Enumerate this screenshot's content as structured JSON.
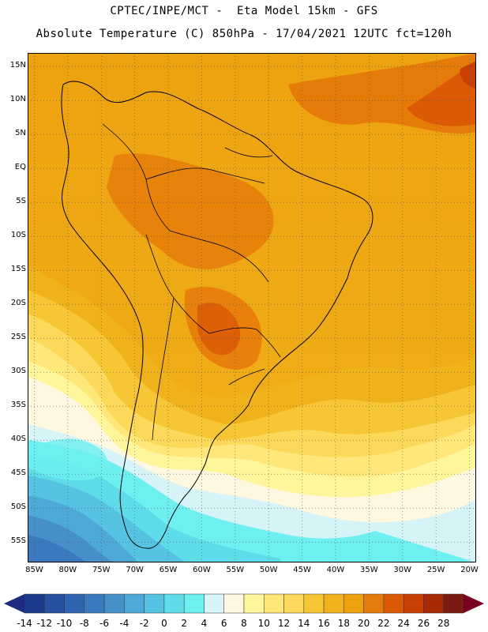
{
  "header": {
    "line1": "CPTEC/INPE/MCT -  Eta Model 15km - GFS",
    "line2": "Absolute Temperature (C) 850hPa - 17/04/2021 12UTC fct=120h"
  },
  "map": {
    "lon_range": [
      -86,
      -19
    ],
    "lat_range": [
      -58,
      17
    ],
    "lat_ticks": [
      {
        "value": 15,
        "label": "15N"
      },
      {
        "value": 10,
        "label": "10N"
      },
      {
        "value": 5,
        "label": "5N"
      },
      {
        "value": 0,
        "label": "EQ"
      },
      {
        "value": -5,
        "label": "5S"
      },
      {
        "value": -10,
        "label": "10S"
      },
      {
        "value": -15,
        "label": "15S"
      },
      {
        "value": -20,
        "label": "20S"
      },
      {
        "value": -25,
        "label": "25S"
      },
      {
        "value": -30,
        "label": "30S"
      },
      {
        "value": -35,
        "label": "35S"
      },
      {
        "value": -40,
        "label": "40S"
      },
      {
        "value": -45,
        "label": "45S"
      },
      {
        "value": -50,
        "label": "50S"
      },
      {
        "value": -55,
        "label": "55S"
      }
    ],
    "lon_ticks": [
      {
        "value": -85,
        "label": "85W"
      },
      {
        "value": -80,
        "label": "80W"
      },
      {
        "value": -75,
        "label": "75W"
      },
      {
        "value": -70,
        "label": "70W"
      },
      {
        "value": -65,
        "label": "65W"
      },
      {
        "value": -60,
        "label": "60W"
      },
      {
        "value": -55,
        "label": "55W"
      },
      {
        "value": -50,
        "label": "50W"
      },
      {
        "value": -45,
        "label": "45W"
      },
      {
        "value": -40,
        "label": "40W"
      },
      {
        "value": -35,
        "label": "35W"
      },
      {
        "value": -30,
        "label": "30W"
      },
      {
        "value": -25,
        "label": "25W"
      },
      {
        "value": -20,
        "label": "20W"
      }
    ],
    "gridlines": "dotted"
  },
  "colorbar": {
    "labels": [
      "-14",
      "-12",
      "-10",
      "-8",
      "-6",
      "-4",
      "-2",
      "0",
      "2",
      "4",
      "6",
      "8",
      "10",
      "12",
      "14",
      "16",
      "18",
      "20",
      "22",
      "24",
      "26",
      "28"
    ],
    "colors": [
      "#1a3a8c",
      "#27509f",
      "#2f64b0",
      "#3b79bf",
      "#4590c9",
      "#4fa9d6",
      "#56c3e2",
      "#5fdcea",
      "#6ef0f0",
      "#d6f4f8",
      "#fff8e0",
      "#fff59a",
      "#ffe77a",
      "#fcd95a",
      "#f6c635",
      "#f0b21a",
      "#eda20f",
      "#e57c0a",
      "#dc5a06",
      "#c94004",
      "#a82a05",
      "#7a1a10"
    ],
    "under_color": "#1e2a80",
    "over_color": "#7a0022"
  }
}
